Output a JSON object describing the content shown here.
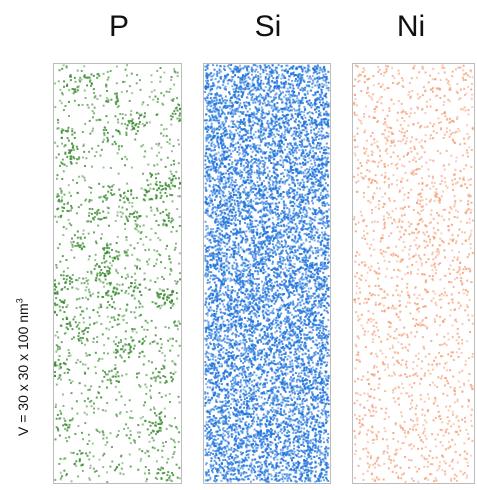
{
  "volume_label": {
    "prefix": "V = 30 x 30 x 100 nm",
    "exponent": "3"
  },
  "panels": [
    {
      "element": "P",
      "color": "#3c8c32",
      "density": "sparse",
      "clustered": true
    },
    {
      "element": "Si",
      "color": "#1e73dc",
      "density": "dense",
      "clustered": false
    },
    {
      "element": "Ni",
      "color": "#f59a70",
      "density": "sparse",
      "clustered": false
    }
  ]
}
